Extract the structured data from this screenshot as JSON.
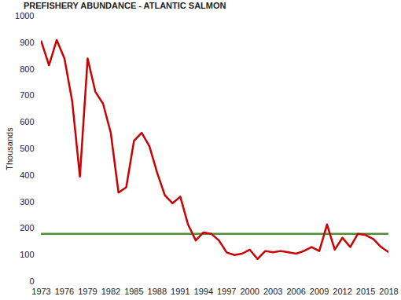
{
  "chart_data": {
    "type": "line",
    "title": "PREFISHERY ABUNDANCE - ATLANTIC SALMON",
    "y_label": "Thousands",
    "x": [
      1973,
      1974,
      1975,
      1976,
      1977,
      1978,
      1979,
      1980,
      1981,
      1982,
      1983,
      1984,
      1985,
      1986,
      1987,
      1988,
      1989,
      1990,
      1991,
      1992,
      1993,
      1994,
      1995,
      1996,
      1997,
      1998,
      1999,
      2000,
      2001,
      2002,
      2003,
      2004,
      2005,
      2006,
      2007,
      2008,
      2009,
      2010,
      2011,
      2012,
      2013,
      2014,
      2015,
      2016,
      2017,
      2018
    ],
    "values": [
      905,
      815,
      910,
      840,
      680,
      395,
      840,
      715,
      670,
      560,
      335,
      355,
      530,
      560,
      510,
      410,
      325,
      295,
      320,
      215,
      155,
      185,
      180,
      155,
      110,
      100,
      105,
      120,
      85,
      115,
      110,
      115,
      110,
      105,
      115,
      130,
      115,
      215,
      120,
      165,
      130,
      180,
      175,
      160,
      130,
      110
    ],
    "color": "#cc0000",
    "hlines": [
      {
        "value": 180,
        "color": "#4e8f32"
      }
    ],
    "xlim": [
      1973,
      2018
    ],
    "xticks": [
      1973,
      1976,
      1979,
      1982,
      1985,
      1988,
      1991,
      1994,
      1997,
      2000,
      2003,
      2006,
      2009,
      2012,
      2015,
      2018
    ],
    "ylim": [
      0,
      1000
    ],
    "yticks": [
      0,
      100,
      200,
      300,
      400,
      500,
      600,
      700,
      800,
      900,
      1000
    ],
    "grid": false
  }
}
